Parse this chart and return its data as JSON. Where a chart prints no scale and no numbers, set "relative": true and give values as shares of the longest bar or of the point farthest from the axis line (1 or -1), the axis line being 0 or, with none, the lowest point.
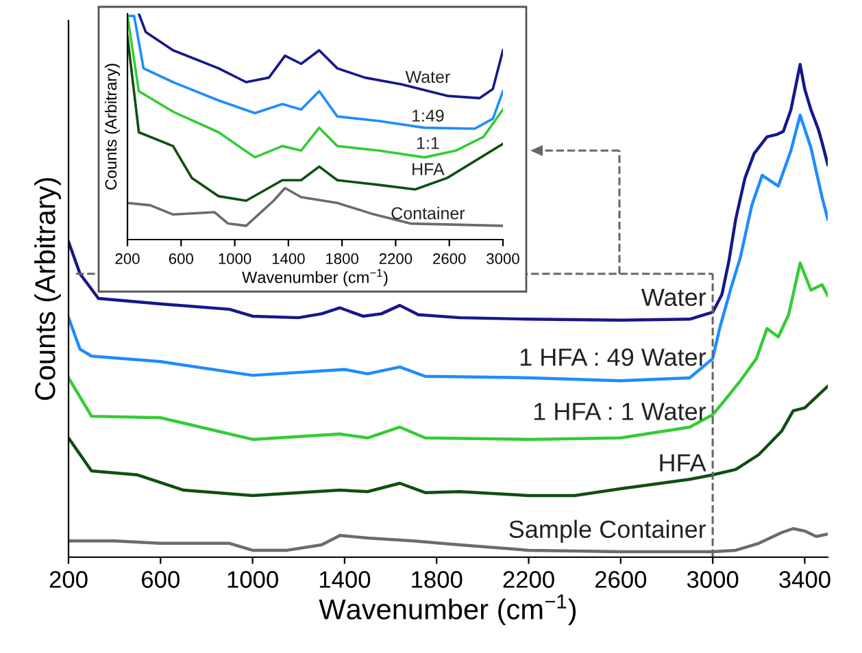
{
  "chart_data": [
    {
      "type": "line",
      "relative": true,
      "xlabel": "Wavenumber (cm$^{−1}$)",
      "ylabel": "Counts (Arbitrary)",
      "xlim": [
        200,
        3500
      ],
      "xticks": [
        200,
        600,
        1000,
        1400,
        1800,
        2200,
        2600,
        3000,
        3400
      ],
      "ref_lines": [
        {
          "axis": "x",
          "value": 3000,
          "color": "#666666",
          "line_style": "dashed"
        },
        {
          "axis": "y",
          "value": 0.575,
          "color": "#666666",
          "line_style": "dashed"
        }
      ],
      "series": [
        {
          "name": "Water",
          "color": "#17178a",
          "x": [
            200,
            250,
            330,
            600,
            900,
            1000,
            1200,
            1300,
            1380,
            1480,
            1560,
            1640,
            1720,
            1900,
            2200,
            2600,
            2900,
            3000,
            3040,
            3070,
            3100,
            3140,
            3180,
            3236,
            3280,
            3307,
            3340,
            3380,
            3400,
            3427,
            3460,
            3475,
            3500
          ],
          "values": [
            0.64,
            0.575,
            0.525,
            0.514,
            0.503,
            0.489,
            0.486,
            0.494,
            0.506,
            0.489,
            0.494,
            0.511,
            0.492,
            0.486,
            0.483,
            0.481,
            0.483,
            0.497,
            0.533,
            0.6,
            0.686,
            0.769,
            0.819,
            0.853,
            0.858,
            0.864,
            0.908,
            1.0,
            0.95,
            0.908,
            0.867,
            0.842,
            0.797
          ]
        },
        {
          "name": "1 HFA : 49 Water",
          "color": "#1e8cff",
          "x": [
            200,
            250,
            300,
            600,
            1000,
            1400,
            1500,
            1640,
            1750,
            2200,
            2600,
            2900,
            3000,
            3030,
            3080,
            3120,
            3170,
            3215,
            3285,
            3340,
            3380,
            3427,
            3475,
            3500
          ],
          "values": [
            0.486,
            0.422,
            0.408,
            0.397,
            0.369,
            0.381,
            0.372,
            0.386,
            0.367,
            0.364,
            0.358,
            0.364,
            0.403,
            0.464,
            0.547,
            0.608,
            0.714,
            0.775,
            0.753,
            0.825,
            0.897,
            0.831,
            0.731,
            0.686
          ]
        },
        {
          "name": "1 HFA : 1 Water",
          "color": "#33cc33",
          "x": [
            200,
            300,
            600,
            1000,
            1380,
            1500,
            1640,
            1750,
            2200,
            2600,
            2900,
            3000,
            3050,
            3120,
            3190,
            3236,
            3285,
            3330,
            3380,
            3427,
            3475,
            3500
          ],
          "values": [
            0.364,
            0.286,
            0.283,
            0.239,
            0.25,
            0.242,
            0.264,
            0.242,
            0.239,
            0.242,
            0.264,
            0.289,
            0.317,
            0.358,
            0.403,
            0.464,
            0.447,
            0.492,
            0.597,
            0.542,
            0.553,
            0.531
          ]
        },
        {
          "name": "HFA",
          "color": "#0f4f12",
          "x": [
            200,
            300,
            500,
            700,
            1000,
            1380,
            1500,
            1640,
            1750,
            1900,
            2200,
            2400,
            2600,
            2900,
            3000,
            3100,
            3200,
            3300,
            3350,
            3400,
            3450,
            3500
          ],
          "values": [
            0.242,
            0.175,
            0.167,
            0.136,
            0.125,
            0.136,
            0.133,
            0.15,
            0.131,
            0.133,
            0.125,
            0.125,
            0.139,
            0.158,
            0.167,
            0.178,
            0.208,
            0.256,
            0.297,
            0.303,
            0.325,
            0.347
          ]
        },
        {
          "name": "Sample Container",
          "color": "#6b6b6b",
          "x": [
            200,
            400,
            600,
            900,
            1000,
            1150,
            1300,
            1380,
            1500,
            1700,
            1900,
            2200,
            2600,
            3000,
            3100,
            3200,
            3300,
            3350,
            3400,
            3450,
            3500
          ],
          "values": [
            0.033,
            0.033,
            0.028,
            0.028,
            0.014,
            0.014,
            0.025,
            0.044,
            0.039,
            0.033,
            0.025,
            0.014,
            0.011,
            0.011,
            0.014,
            0.028,
            0.05,
            0.058,
            0.053,
            0.042,
            0.047
          ]
        }
      ]
    },
    {
      "type": "line",
      "relative": true,
      "xlabel": "Wavenumber (cm$^{−1}$)",
      "ylabel": "Counts (Arbitrary)",
      "xlim": [
        200,
        3000
      ],
      "xticks": [
        200,
        600,
        1000,
        1400,
        1800,
        2200,
        2600,
        3000
      ],
      "series": [
        {
          "name": "Water",
          "color": "#17178a",
          "x": [
            285,
            336,
            540,
            880,
            1085,
            1255,
            1375,
            1495,
            1630,
            1765,
            1970,
            2245,
            2585,
            2825,
            2925,
            3000
          ],
          "values": [
            1.0,
            0.919,
            0.838,
            0.758,
            0.697,
            0.717,
            0.814,
            0.778,
            0.838,
            0.758,
            0.717,
            0.687,
            0.636,
            0.626,
            0.667,
            0.838
          ]
        },
        {
          "name": "1:49",
          "color": "#1e8cff",
          "x": [
            200,
            250,
            320,
            540,
            880,
            1150,
            1355,
            1495,
            1630,
            1765,
            2075,
            2415,
            2790,
            2925,
            3000
          ],
          "values": [
            0.99,
            0.99,
            0.758,
            0.697,
            0.616,
            0.56,
            0.6,
            0.576,
            0.657,
            0.545,
            0.525,
            0.495,
            0.491,
            0.535,
            0.657
          ]
        },
        {
          "name": "1:1",
          "color": "#33cc33",
          "x": [
            200,
            285,
            540,
            880,
            1150,
            1355,
            1495,
            1630,
            1765,
            2075,
            2415,
            2650,
            2855,
            3000
          ],
          "values": [
            0.99,
            0.657,
            0.566,
            0.475,
            0.364,
            0.414,
            0.394,
            0.495,
            0.414,
            0.394,
            0.364,
            0.394,
            0.455,
            0.576
          ]
        },
        {
          "name": "HFA",
          "color": "#0f4f12",
          "x": [
            200,
            285,
            540,
            680,
            880,
            1085,
            1355,
            1495,
            1630,
            1765,
            2075,
            2345,
            2585,
            3000
          ],
          "values": [
            0.899,
            0.475,
            0.414,
            0.273,
            0.192,
            0.172,
            0.263,
            0.263,
            0.323,
            0.263,
            0.242,
            0.222,
            0.273,
            0.424
          ]
        },
        {
          "name": "Container",
          "color": "#6b6b6b",
          "x": [
            200,
            370,
            540,
            850,
            950,
            1085,
            1290,
            1375,
            1495,
            1765,
            2040,
            2310,
            3000
          ],
          "values": [
            0.162,
            0.152,
            0.111,
            0.121,
            0.071,
            0.061,
            0.172,
            0.228,
            0.188,
            0.162,
            0.111,
            0.071,
            0.061
          ]
        }
      ]
    }
  ]
}
